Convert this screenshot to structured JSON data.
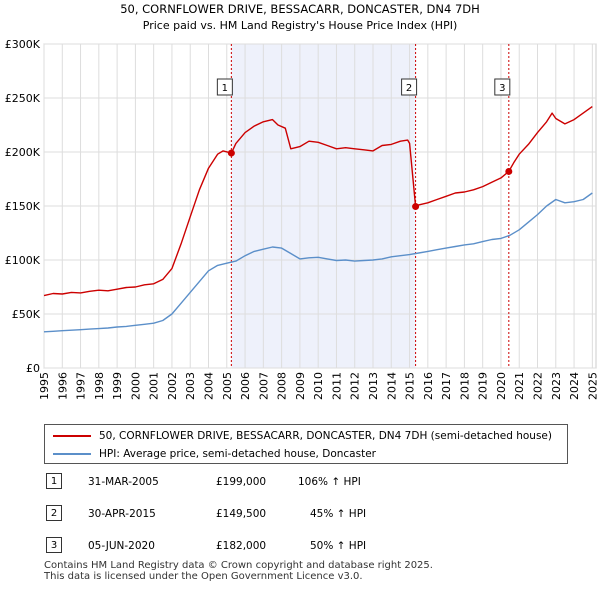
{
  "chart_data": {
    "type": "line",
    "title": "50, CORNFLOWER DRIVE, BESSACARR, DONCASTER, DN4 7DH",
    "subtitle": "Price paid vs. HM Land Registry's House Price Index (HPI)",
    "xlabel": "",
    "ylabel": "",
    "xlim": [
      1995,
      2025.2
    ],
    "ylim": [
      0,
      300000
    ],
    "grid": true,
    "y_ticks": [
      0,
      50000,
      100000,
      150000,
      200000,
      250000,
      300000
    ],
    "y_tick_labels": [
      "£0",
      "£50K",
      "£100K",
      "£150K",
      "£200K",
      "£250K",
      "£300K"
    ],
    "x_tick_labels": [
      "1995",
      "1996",
      "1997",
      "1998",
      "1999",
      "2000",
      "2001",
      "2002",
      "2003",
      "2004",
      "2005",
      "2006",
      "2007",
      "2008",
      "2009",
      "2010",
      "2011",
      "2012",
      "2013",
      "2014",
      "2015",
      "2016",
      "2017",
      "2018",
      "2019",
      "2020",
      "2021",
      "2022",
      "2023",
      "2024",
      "2025"
    ],
    "series": [
      {
        "name": "50, CORNFLOWER DRIVE, BESSACARR, DONCASTER, DN4 7DH (semi-detached house)",
        "color": "#cc0000",
        "x": [
          1995.0,
          1995.5,
          1996.0,
          1996.5,
          1997.0,
          1997.5,
          1998.0,
          1998.5,
          1999.0,
          1999.5,
          2000.0,
          2000.5,
          2001.0,
          2001.5,
          2002.0,
          2002.5,
          2003.0,
          2003.5,
          2004.0,
          2004.5,
          2004.8,
          2005.25,
          2005.5,
          2006.0,
          2006.5,
          2007.0,
          2007.5,
          2007.8,
          2008.2,
          2008.5,
          2009.0,
          2009.5,
          2010.0,
          2010.5,
          2011.0,
          2011.5,
          2012.0,
          2012.5,
          2013.0,
          2013.5,
          2014.0,
          2014.5,
          2014.9,
          2015.0,
          2015.33,
          2015.5,
          2016.0,
          2016.5,
          2017.0,
          2017.5,
          2018.0,
          2018.5,
          2019.0,
          2019.5,
          2020.0,
          2020.43,
          2020.7,
          2021.0,
          2021.5,
          2022.0,
          2022.5,
          2022.8,
          2023.0,
          2023.5,
          2024.0,
          2024.5,
          2025.0
        ],
        "values": [
          67000,
          69000,
          68500,
          70000,
          69500,
          71000,
          72000,
          71500,
          73000,
          74500,
          75000,
          77000,
          78000,
          82000,
          92000,
          115000,
          140000,
          165000,
          185000,
          198000,
          201000,
          199000,
          208000,
          218000,
          224000,
          228000,
          230000,
          225000,
          222000,
          203000,
          205000,
          210000,
          209000,
          206000,
          203000,
          204000,
          203000,
          202000,
          201000,
          206000,
          207000,
          210000,
          211000,
          208000,
          149500,
          151000,
          153000,
          156000,
          159000,
          162000,
          163000,
          165000,
          168000,
          172000,
          176000,
          182000,
          190000,
          198000,
          207000,
          218000,
          228000,
          236000,
          231000,
          226000,
          230000,
          236000,
          242000
        ]
      },
      {
        "name": "HPI: Average price, semi-detached house, Doncaster",
        "color": "#5b8fc9",
        "x": [
          1995.0,
          1995.5,
          1996.0,
          1996.5,
          1997.0,
          1997.5,
          1998.0,
          1998.5,
          1999.0,
          1999.5,
          2000.0,
          2000.5,
          2001.0,
          2001.5,
          2002.0,
          2002.5,
          2003.0,
          2003.5,
          2004.0,
          2004.5,
          2005.0,
          2005.5,
          2006.0,
          2006.5,
          2007.0,
          2007.5,
          2008.0,
          2008.5,
          2009.0,
          2009.5,
          2010.0,
          2010.5,
          2011.0,
          2011.5,
          2012.0,
          2012.5,
          2013.0,
          2013.5,
          2014.0,
          2014.5,
          2015.0,
          2015.5,
          2016.0,
          2016.5,
          2017.0,
          2017.5,
          2018.0,
          2018.5,
          2019.0,
          2019.5,
          2020.0,
          2020.5,
          2021.0,
          2021.5,
          2022.0,
          2022.5,
          2023.0,
          2023.5,
          2024.0,
          2024.5,
          2025.0
        ],
        "values": [
          33500,
          34000,
          34500,
          35000,
          35500,
          36000,
          36500,
          37000,
          38000,
          38500,
          39500,
          40500,
          41500,
          44000,
          50000,
          60000,
          70000,
          80000,
          90000,
          95000,
          97000,
          99000,
          104000,
          108000,
          110000,
          112000,
          111000,
          106000,
          101000,
          102000,
          102500,
          101000,
          99500,
          100000,
          99000,
          99500,
          100000,
          101000,
          103000,
          104000,
          105000,
          106500,
          108000,
          109500,
          111000,
          112500,
          114000,
          115000,
          117000,
          119000,
          120000,
          123000,
          128000,
          135000,
          142000,
          150000,
          156000,
          153000,
          154000,
          156000,
          162000
        ]
      }
    ],
    "sales": [
      {
        "label": "1",
        "x": 2005.25,
        "value": 199000
      },
      {
        "label": "2",
        "x": 2015.33,
        "value": 149500
      },
      {
        "label": "3",
        "x": 2020.43,
        "value": 182000
      }
    ],
    "shade": {
      "from": 2005.25,
      "to": 2015.33
    }
  },
  "legend": {
    "property_label": "50, CORNFLOWER DRIVE, BESSACARR, DONCASTER, DN4 7DH (semi-detached house)",
    "hpi_label": "HPI: Average price, semi-detached house, Doncaster",
    "property_color": "#cc0000",
    "hpi_color": "#5b8fc9"
  },
  "sales_table": [
    {
      "num": "1",
      "date": "31-MAR-2005",
      "price": "£199,000",
      "hpi": "106% ↑ HPI"
    },
    {
      "num": "2",
      "date": "30-APR-2015",
      "price": "£149,500",
      "hpi": "45% ↑ HPI"
    },
    {
      "num": "3",
      "date": "05-JUN-2020",
      "price": "£182,000",
      "hpi": "50% ↑ HPI"
    }
  ],
  "footer": {
    "line1": "Contains HM Land Registry data © Crown copyright and database right 2025.",
    "line2": "This data is licensed under the Open Government Licence v3.0."
  }
}
